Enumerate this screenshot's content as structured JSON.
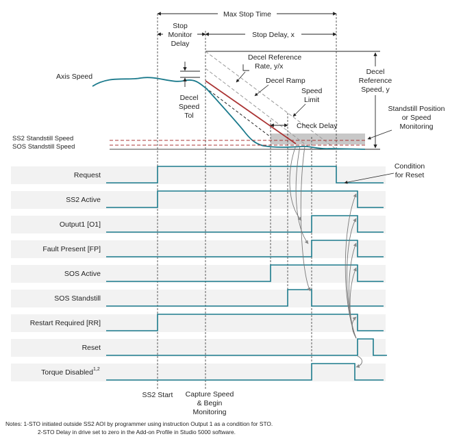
{
  "annotations": {
    "max_stop_time": "Max Stop Time",
    "stop_monitor_delay": [
      "Stop",
      "Monitor",
      "Delay"
    ],
    "stop_delay": "Stop Delay, x",
    "decel_reference_rate": [
      "Decel Reference",
      "Rate, y/x"
    ],
    "decel_reference_speed": [
      "Decel",
      "Reference",
      "Speed, y"
    ],
    "axis_speed": "Axis Speed",
    "decel_ramp": "Decel Ramp",
    "speed_limit": [
      "Speed",
      "Limit"
    ],
    "decel_speed_tol": [
      "Decel",
      "Speed",
      "Tol"
    ],
    "check_delay": "Check Delay",
    "standstill_monitoring": [
      "Standstill Position",
      "or Speed",
      "Monitoring"
    ],
    "ss2_standstill_speed": "SS2 Standstill Speed",
    "sos_standstill_speed": "SOS Standstill Speed",
    "condition_for_reset": [
      "Condition",
      "for Reset"
    ]
  },
  "signals": [
    {
      "label": "Request"
    },
    {
      "label": "SS2 Active"
    },
    {
      "label": "Output1 [O1]"
    },
    {
      "label": "Fault Present [FP]"
    },
    {
      "label": "SOS Active"
    },
    {
      "label": "SOS Standstill"
    },
    {
      "label": "Restart Required [RR]"
    },
    {
      "label": "Reset"
    },
    {
      "label": "Torque Disabled",
      "sup": "1,2"
    }
  ],
  "events": {
    "ss2_start": "SS2 Start",
    "capture_speed": [
      "Capture Speed",
      "& Begin",
      "Monitoring"
    ]
  },
  "notes": [
    "Notes: 1-STO initiated outside SS2 AOI by programmer using instruction Output 1 as a condition for STO.",
    "2-STO Delay in drive set to zero in the Add-on Profile in Studio 5000 software."
  ]
}
